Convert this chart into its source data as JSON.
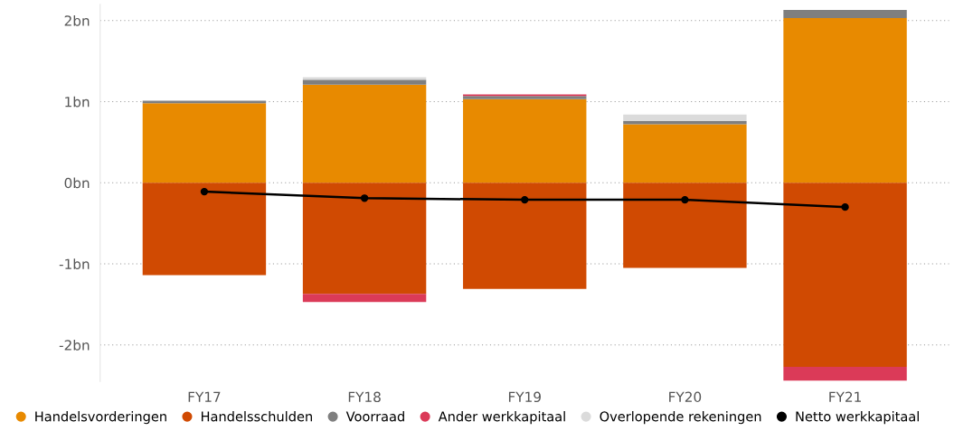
{
  "chart_data": {
    "type": "bar",
    "stacked": true,
    "categories": [
      "FY17",
      "FY18",
      "FY19",
      "FY20",
      "FY21"
    ],
    "series": [
      {
        "name": "Handelsvorderingen",
        "color": "#e88a00",
        "values": [
          0.98,
          1.21,
          1.03,
          0.72,
          2.03
        ]
      },
      {
        "name": "Handelsschulden",
        "color": "#d04a02",
        "values": [
          -1.14,
          -1.37,
          -1.31,
          -1.05,
          -2.27
        ]
      },
      {
        "name": "Voorraad",
        "color": "#7f7f7f",
        "values": [
          0.03,
          0.06,
          0.04,
          0.04,
          0.1
        ]
      },
      {
        "name": "Ander werkkapitaal",
        "color": "#db3a58",
        "values": [
          null,
          -0.1,
          0.02,
          null,
          -0.17
        ]
      },
      {
        "name": "Overlopende rekeningen",
        "color": "#dbdbdb",
        "values": [
          null,
          0.03,
          null,
          0.08,
          null
        ]
      },
      {
        "name": "Netto werkkapitaal",
        "color": "#000000",
        "type": "line",
        "marker": "circle",
        "values": [
          -0.11,
          -0.19,
          -0.21,
          -0.21,
          -0.3
        ]
      }
    ],
    "ylim": [
      -2.45,
      2.2
    ],
    "yticks": [
      {
        "value": -2,
        "label": "-2bn"
      },
      {
        "value": -1,
        "label": "-1bn"
      },
      {
        "value": 0,
        "label": "0bn"
      },
      {
        "value": 1,
        "label": "1bn"
      },
      {
        "value": 2,
        "label": "2bn"
      }
    ],
    "grid": "y",
    "legend": "bottom left"
  }
}
